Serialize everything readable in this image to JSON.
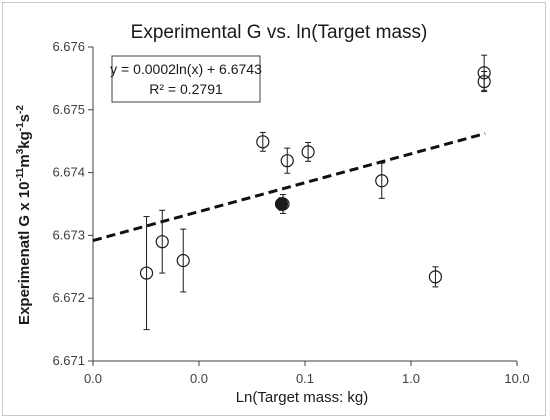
{
  "chart_data": {
    "type": "scatter",
    "title": "Experimental  G vs. ln(Target mass)",
    "xlabel": "Ln(Target mass: kg)",
    "ylabel_main": "Experimenatl G x  10",
    "ylabel_exp1": "-11",
    "ylabel_mid": "m",
    "ylabel_exp2": "3",
    "ylabel_mid2": "kg",
    "ylabel_exp3": "-1",
    "ylabel_mid3": "s",
    "ylabel_exp4": "-2",
    "x_scale": "log",
    "xlim": [
      0.001,
      10
    ],
    "x_ticks": [
      0.001,
      0.01,
      0.1,
      1,
      10
    ],
    "x_tick_labels": [
      "0.0",
      "0.0",
      "0.1",
      "1.0",
      "10.0"
    ],
    "ylim": [
      6.671,
      6.676
    ],
    "y_ticks": [
      6.671,
      6.672,
      6.673,
      6.674,
      6.675,
      6.676
    ],
    "y_tick_labels": [
      "6.671",
      "6.672",
      "6.673",
      "6.674",
      "6.675",
      "6.676"
    ],
    "grid": false,
    "legend": "none",
    "trendline": {
      "style": "dashed",
      "label_line1": "y = 0.0002ln(x) + 6.6743",
      "label_line2": "R² = 0.2791",
      "slope": 0.0002,
      "intercept": 6.6743
    },
    "points": [
      {
        "x": 0.0032,
        "y": 6.6724,
        "err": 0.0009
      },
      {
        "x": 0.0045,
        "y": 6.6729,
        "err": 0.0005
      },
      {
        "x": 0.0071,
        "y": 6.6726,
        "err": 0.0005
      },
      {
        "x": 0.04,
        "y": 6.67449,
        "err": 0.00015
      },
      {
        "x": 0.06,
        "y": 6.6735,
        "err": 0.0001,
        "filled": true
      },
      {
        "x": 0.062,
        "y": 6.6735,
        "err": 0.00015
      },
      {
        "x": 0.068,
        "y": 6.67419,
        "err": 0.0002
      },
      {
        "x": 0.107,
        "y": 6.67433,
        "err": 0.00015
      },
      {
        "x": 0.53,
        "y": 6.67387,
        "err": 0.00028
      },
      {
        "x": 1.7,
        "y": 6.67234,
        "err": 0.00016
      },
      {
        "x": 4.9,
        "y": 6.67559,
        "err": 0.00028
      },
      {
        "x": 4.9,
        "y": 6.67545,
        "err": 0.00016
      }
    ],
    "series_color": "#1a1a1a"
  }
}
